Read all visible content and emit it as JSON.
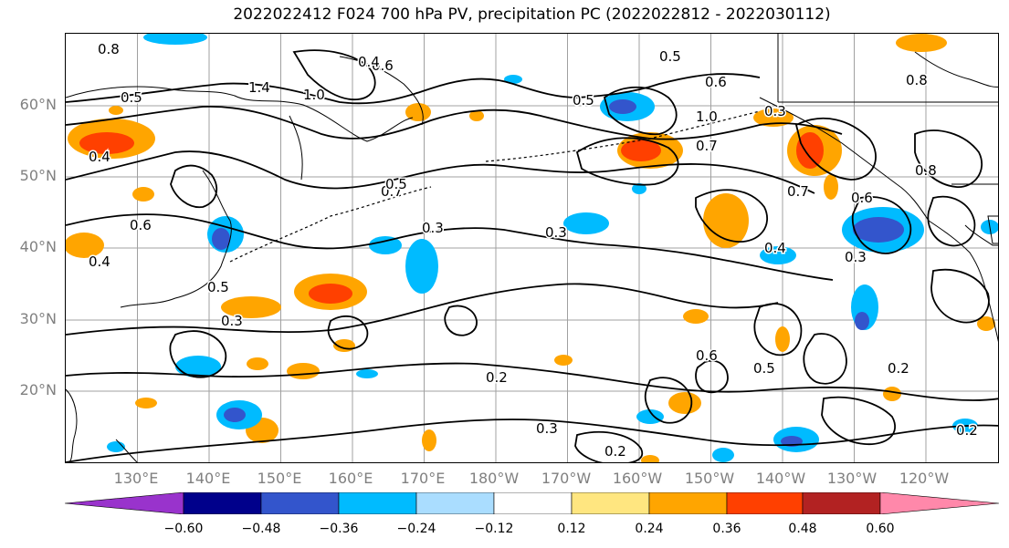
{
  "title": "2022022412 F024 700 hPa PV, precipitation PC (2022022812 - 2022030112)",
  "lat_labels": [
    "60°N",
    "50°N",
    "40°N",
    "30°N",
    "20°N"
  ],
  "lon_labels": [
    "130°E",
    "140°E",
    "150°E",
    "160°E",
    "170°E",
    "180°W",
    "170°W",
    "160°W",
    "150°W",
    "140°W",
    "130°W",
    "120°W"
  ],
  "contour_labels": [
    "0.8",
    "1.4",
    "1.0",
    "0.6",
    "0.4",
    "0.5",
    "0.7",
    "0.3",
    "0.2",
    "1.0",
    "0.6",
    "0.5",
    "0.8",
    "0.3",
    "0.2",
    "0.7",
    "0.4",
    "0.6",
    "0.5",
    "0.3",
    "0.2",
    "0.8",
    "0.5",
    "0.6",
    "0.5",
    "0.6",
    "0.3",
    "0.4",
    "0.7",
    "0.3",
    "0.4",
    "0.2",
    "0.3",
    "0.5"
  ],
  "colorbar": {
    "ticks": [
      "−0.60",
      "−0.48",
      "−0.36",
      "−0.24",
      "−0.12",
      "0.12",
      "0.24",
      "0.36",
      "0.48",
      "0.60"
    ],
    "colors": [
      "#9933cc",
      "#00008b",
      "#3355cc",
      "#00bbff",
      "#aaddff",
      "#ffffff",
      "#ffe680",
      "#ffa500",
      "#ff4000",
      "#b22222",
      "#ff88aa"
    ]
  },
  "colors": {
    "axis_label": "#808080",
    "grid": "#a0a0a0",
    "contour": "#000000"
  }
}
